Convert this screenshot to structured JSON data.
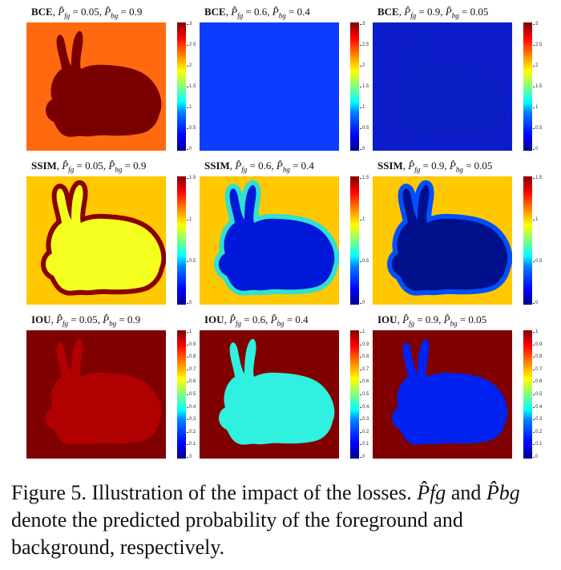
{
  "figure": {
    "rows": [
      {
        "loss": "BCE",
        "ticks": [
          "3",
          "2.5",
          "2",
          "1.5",
          "1",
          "0.5",
          "0"
        ],
        "panels": [
          {
            "title_loss": "BCE",
            "pfg": "0.05",
            "pbg": "0.9",
            "bg_color": "#ff6a10",
            "fg_color": "#7a0000",
            "border_color": "#7a0000"
          },
          {
            "title_loss": "BCE",
            "pfg": "0.6",
            "pbg": "0.4",
            "bg_color": "#0b3cff",
            "fg_color": "#0b3cff",
            "border_color": "#0b3cff"
          },
          {
            "title_loss": "BCE",
            "pfg": "0.9",
            "pbg": "0.05",
            "bg_color": "#0b1cc8",
            "fg_color": "#0b1ec4",
            "border_color": "#0b1ec4"
          }
        ]
      },
      {
        "loss": "SSIM",
        "ticks": [
          "1.5",
          "1",
          "0.5",
          "0"
        ],
        "panels": [
          {
            "title_loss": "SSIM",
            "pfg": "0.05",
            "pbg": "0.9",
            "bg_color": "#ffc800",
            "fg_color": "#f4ff20",
            "border_color": "#8a0000"
          },
          {
            "title_loss": "SSIM",
            "pfg": "0.6",
            "pbg": "0.4",
            "bg_color": "#ffc800",
            "fg_color": "#0018d8",
            "border_color": "#30e0d0"
          },
          {
            "title_loss": "SSIM",
            "pfg": "0.9",
            "pbg": "0.05",
            "bg_color": "#ffc800",
            "fg_color": "#00108c",
            "border_color": "#0050ff"
          }
        ]
      },
      {
        "loss": "IOU",
        "ticks": [
          "1",
          "0.9",
          "0.8",
          "0.7",
          "0.6",
          "0.5",
          "0.4",
          "0.3",
          "0.2",
          "0.1",
          "0"
        ],
        "panels": [
          {
            "title_loss": "IOU",
            "pfg": "0.05",
            "pbg": "0.9",
            "bg_color": "#800000",
            "fg_color": "#b00000",
            "border_color": "#b00000"
          },
          {
            "title_loss": "IOU",
            "pfg": "0.6",
            "pbg": "0.4",
            "bg_color": "#800000",
            "fg_color": "#30f0e0",
            "border_color": "#30f0e0"
          },
          {
            "title_loss": "IOU",
            "pfg": "0.9",
            "pbg": "0.05",
            "bg_color": "#800000",
            "fg_color": "#0022f0",
            "border_color": "#0022f0"
          }
        ]
      }
    ]
  },
  "caption": {
    "label": "Figure 5.",
    "text_1": " Illustration of the impact of the losses. ",
    "sym_fg": "P̂fg",
    "text_2": " and ",
    "sym_bg": "P̂bg",
    "text_3": " denote the predicted probability of the foreground and background, respectively."
  }
}
